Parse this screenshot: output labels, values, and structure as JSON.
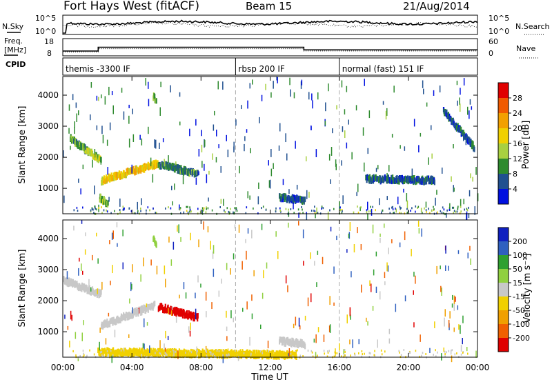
{
  "header": {
    "station": "Fort Hays West (fitACF)",
    "beam": "Beam 15",
    "date": "21/Aug/2014"
  },
  "top_panel": {
    "left_label": "N.Sky",
    "left_ticks": [
      "10^5",
      "10^0"
    ],
    "right_label": "N.Search",
    "right_ticks": [
      "10^5",
      "10^0"
    ]
  },
  "freq_panel": {
    "left_label_1": "Freq.",
    "left_label_2": "[MHz]",
    "left_ticks": [
      "18",
      "8"
    ],
    "right_label": "Nave",
    "right_ticks": [
      "60",
      "0"
    ],
    "cpid_label": "CPID",
    "freq_steps": [
      {
        "t": 0,
        "mhz": 10.8
      },
      {
        "t": 2.05,
        "mhz": 10.8
      },
      {
        "t": 2.05,
        "mhz": 13.0
      },
      {
        "t": 13.95,
        "mhz": 13.0
      },
      {
        "t": 13.95,
        "mhz": 11.5
      },
      {
        "t": 24,
        "mhz": 11.5
      }
    ],
    "nave_steps": [
      {
        "t": 0,
        "nave": 14
      },
      {
        "t": 2.05,
        "nave": 14
      },
      {
        "t": 2.05,
        "nave": 25
      },
      {
        "t": 13.95,
        "nave": 25
      },
      {
        "t": 13.95,
        "nave": 17
      },
      {
        "t": 24,
        "nave": 17
      }
    ]
  },
  "modes": [
    {
      "label": "themis -3300 IF",
      "start": 0
    },
    {
      "label": "rbsp 200 IF",
      "start": 10
    },
    {
      "label": "normal (fast) 151 IF",
      "start": 16
    }
  ],
  "mode_boundaries": [
    10,
    16
  ],
  "power_colorbar": {
    "title": "Power [dB]",
    "ticks": [
      "28",
      "24",
      "20",
      "16",
      "12",
      "8",
      "4"
    ],
    "colors": [
      "#e00000",
      "#f05a00",
      "#f2a000",
      "#f0d000",
      "#a8d040",
      "#2e8a2e",
      "#205090",
      "#0010e0"
    ]
  },
  "velocity_colorbar": {
    "title": "Velocity [m s⁻¹]",
    "ticks": [
      "200",
      "100",
      "50",
      "15",
      "-15",
      "-50",
      "-100",
      "-200"
    ],
    "colors": [
      "#1020c0",
      "#2f60c0",
      "#2fa030",
      "#90d040",
      "#c8c8c8",
      "#f0d000",
      "#f0a000",
      "#f06000",
      "#e00000"
    ]
  },
  "xaxis": {
    "label": "Time UT",
    "ticks": [
      "00:00",
      "04:00",
      "08:00",
      "12:00",
      "16:00",
      "20:00",
      "00:00"
    ]
  },
  "chart_data": {
    "type": "heatmap",
    "title": "Fort Hays West (fitACF)",
    "xlabel": "Time UT",
    "ylabel": "Slant Range [km]",
    "xlim": [
      0,
      24
    ],
    "ylim": [
      180,
      4600
    ],
    "yticks": [
      "1000",
      "2000",
      "3000",
      "4000"
    ],
    "yticks_values": [
      1000,
      2000,
      3000,
      4000
    ],
    "panels": [
      {
        "name": "power",
        "unit": "dB",
        "clim": [
          0,
          30
        ],
        "features": [
          {
            "t0": 0.4,
            "t1": 1.6,
            "r0": 2600,
            "r1": 2100,
            "value": 10
          },
          {
            "t0": 1.2,
            "t1": 2.2,
            "r0": 2300,
            "r1": 1900,
            "value": 14
          },
          {
            "t0": 2.2,
            "t1": 5.5,
            "r0": 1250,
            "r1": 1800,
            "value": 18
          },
          {
            "t0": 5.5,
            "t1": 7.8,
            "r0": 1780,
            "r1": 1450,
            "value": 8
          },
          {
            "t0": 5.2,
            "t1": 5.4,
            "r0": 3950,
            "r1": 3850,
            "value": 12
          },
          {
            "t0": 2.1,
            "t1": 2.6,
            "r0": 700,
            "r1": 500,
            "value": 12
          },
          {
            "t0": 12.5,
            "t1": 14.0,
            "r0": 700,
            "r1": 600,
            "value": 6
          },
          {
            "t0": 17.5,
            "t1": 21.5,
            "r0": 1300,
            "r1": 1250,
            "value": 6
          },
          {
            "t0": 22.0,
            "t1": 23.8,
            "r0": 3500,
            "r1": 2300,
            "value": 5
          }
        ]
      },
      {
        "name": "velocity",
        "unit": "m s-1",
        "clim": [
          -250,
          250
        ],
        "features": [
          {
            "t0": 0.0,
            "t1": 2.2,
            "r0": 2650,
            "r1": 2200,
            "value": 0
          },
          {
            "t0": 2.2,
            "t1": 5.3,
            "r0": 1200,
            "r1": 1850,
            "value": 0
          },
          {
            "t0": 5.5,
            "t1": 7.8,
            "r0": 1800,
            "r1": 1450,
            "value": -220
          },
          {
            "t0": 5.2,
            "t1": 5.4,
            "r0": 3950,
            "r1": 3850,
            "value": 60
          },
          {
            "t0": 12.5,
            "t1": 14.0,
            "r0": 700,
            "r1": 600,
            "value": 0
          },
          {
            "t0": 2.0,
            "t1": 13.5,
            "r0": 350,
            "r1": 250,
            "value": -60
          }
        ]
      }
    ]
  }
}
